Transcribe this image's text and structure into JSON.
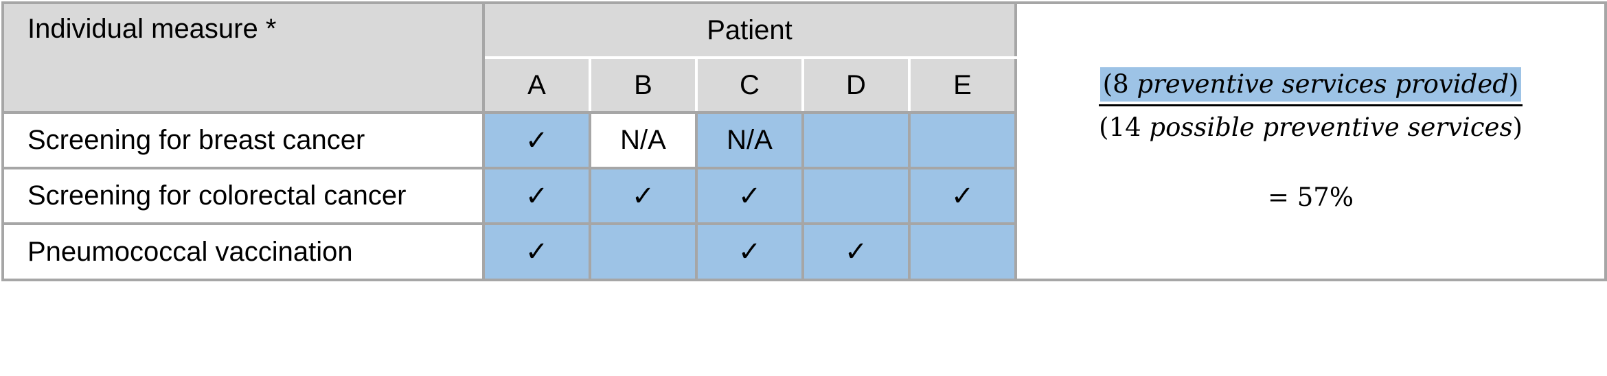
{
  "table": {
    "measure_header": "Individual measure *",
    "patient_header": "Patient",
    "patients": [
      "A",
      "B",
      "C",
      "D",
      "E"
    ],
    "rows": [
      {
        "label": "Screening for breast cancer",
        "cells": [
          "✓",
          "N/A",
          "N/A",
          "",
          ""
        ],
        "shaded": [
          true,
          false,
          true,
          true,
          true
        ]
      },
      {
        "label": "Screening for colorectal cancer",
        "cells": [
          "✓",
          "✓",
          "✓",
          "",
          "✓"
        ],
        "shaded": [
          true,
          true,
          true,
          true,
          true
        ]
      },
      {
        "label": "Pneumococcal vaccination",
        "cells": [
          "✓",
          "",
          "✓",
          "✓",
          ""
        ],
        "shaded": [
          true,
          true,
          true,
          true,
          true
        ]
      }
    ]
  },
  "formula": {
    "numerator_open": "(8 ",
    "numerator_text": "preventive services provided",
    "numerator_close": ")",
    "denominator_open": "(14 ",
    "denominator_text": "possible preventive services",
    "denominator_close": ")",
    "result": "= 57%"
  },
  "colors": {
    "shade": "#9dc3e6",
    "header": "#d9d9d9",
    "border": "#a6a6a6"
  }
}
